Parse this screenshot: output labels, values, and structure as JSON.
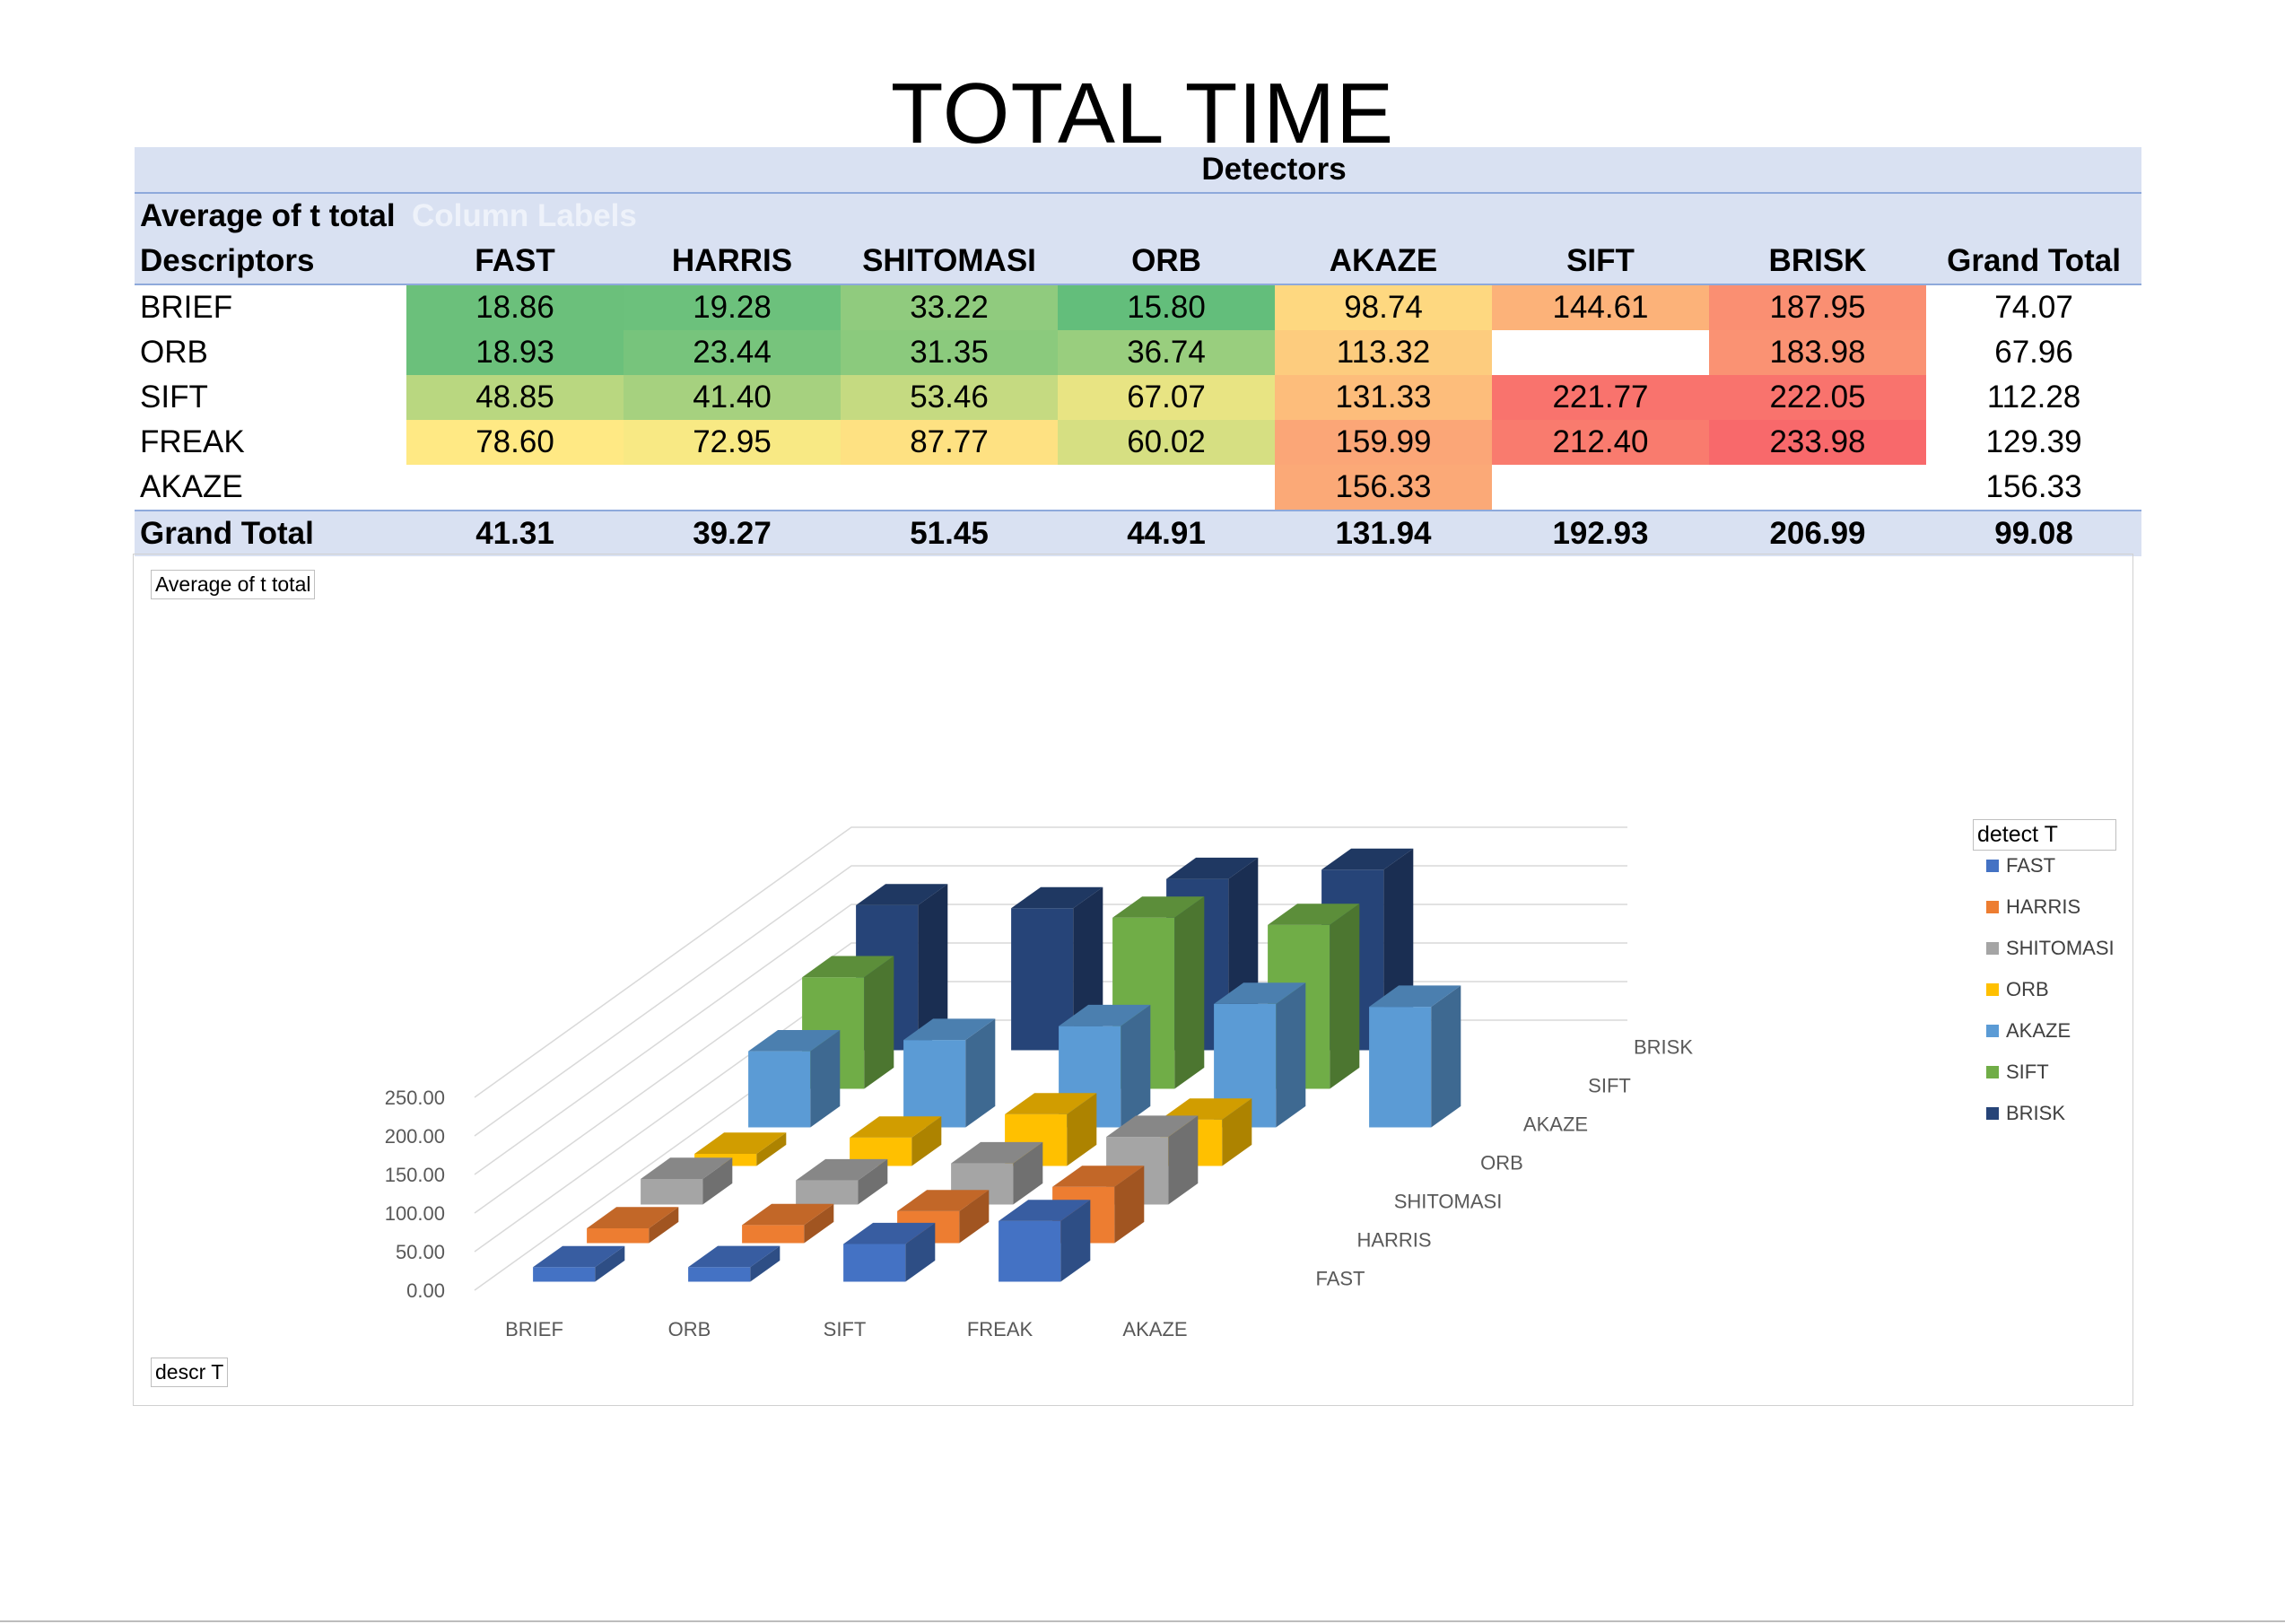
{
  "title": "TOTAL TIME",
  "pivot": {
    "band_label": "Detectors",
    "value_field": "Average of t total",
    "column_labels": "Column Labels",
    "row_field": "Descriptors",
    "columns": [
      "FAST",
      "HARRIS",
      "SHITOMASI",
      "ORB",
      "AKAZE",
      "SIFT",
      "BRISK",
      "Grand Total"
    ],
    "rows": [
      {
        "label": "BRIEF",
        "values": [
          "18.86",
          "19.28",
          "33.22",
          "15.80",
          "98.74",
          "144.61",
          "187.95"
        ],
        "total": "74.07"
      },
      {
        "label": "ORB",
        "values": [
          "18.93",
          "23.44",
          "31.35",
          "36.74",
          "113.32",
          "",
          "183.98"
        ],
        "total": "67.96"
      },
      {
        "label": "SIFT",
        "values": [
          "48.85",
          "41.40",
          "53.46",
          "67.07",
          "131.33",
          "221.77",
          "222.05"
        ],
        "total": "112.28"
      },
      {
        "label": "FREAK",
        "values": [
          "78.60",
          "72.95",
          "87.77",
          "60.02",
          "159.99",
          "212.40",
          "233.98"
        ],
        "total": "129.39"
      },
      {
        "label": "AKAZE",
        "values": [
          "",
          "",
          "",
          "",
          "156.33",
          "",
          ""
        ],
        "total": "156.33"
      }
    ],
    "grand_total_label": "Grand Total",
    "grand_totals": [
      "41.31",
      "39.27",
      "51.45",
      "44.91",
      "131.94",
      "192.93",
      "206.99",
      "99.08"
    ]
  },
  "chart_data": {
    "type": "bar",
    "subtype": "3d-column",
    "title": "",
    "value_field_button": "Average of t total",
    "axis_field_button": "descr T",
    "legend_field_button": "detect T",
    "categories": [
      "BRIEF",
      "ORB",
      "SIFT",
      "FREAK",
      "AKAZE"
    ],
    "series": [
      {
        "name": "FAST",
        "color": "#4472c4",
        "values": [
          18.86,
          18.93,
          48.85,
          78.6,
          null
        ]
      },
      {
        "name": "HARRIS",
        "color": "#ed7d31",
        "values": [
          19.28,
          23.44,
          41.4,
          72.95,
          null
        ]
      },
      {
        "name": "SHITOMASI",
        "color": "#a5a5a5",
        "values": [
          33.22,
          31.35,
          53.46,
          87.77,
          null
        ]
      },
      {
        "name": "ORB",
        "color": "#ffc000",
        "values": [
          15.8,
          36.74,
          67.07,
          60.02,
          null
        ]
      },
      {
        "name": "AKAZE",
        "color": "#5b9bd5",
        "values": [
          98.74,
          113.32,
          131.33,
          159.99,
          156.33
        ]
      },
      {
        "name": "SIFT",
        "color": "#70ad47",
        "values": [
          144.61,
          null,
          221.77,
          212.4,
          null
        ]
      },
      {
        "name": "BRISK",
        "color": "#264478",
        "values": [
          187.95,
          183.98,
          222.05,
          233.98,
          null
        ]
      }
    ],
    "yticks": [
      "0.00",
      "50.00",
      "100.00",
      "150.00",
      "200.00",
      "250.00"
    ],
    "ylim": [
      0,
      250
    ],
    "grid": true,
    "legend": "right"
  },
  "heat_colors": {
    "min": "#63be7b",
    "mid": "#ffeb84",
    "max": "#f8696b"
  }
}
